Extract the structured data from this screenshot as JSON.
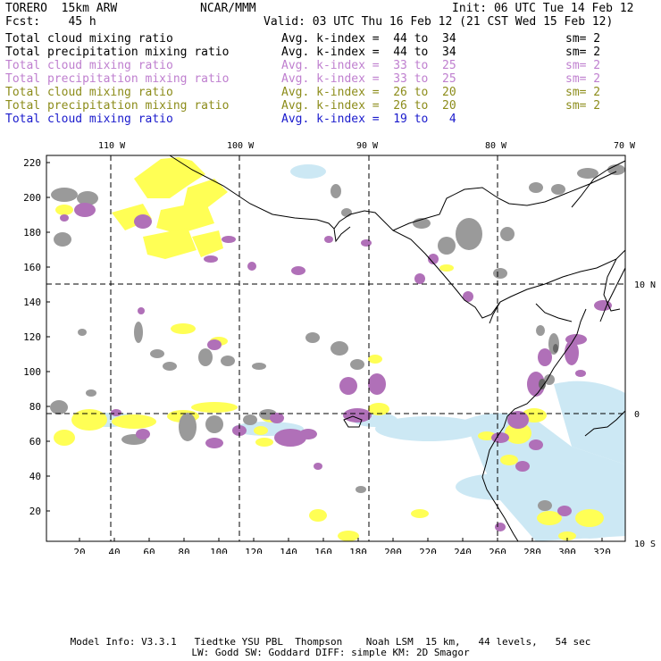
{
  "header": {
    "model": "TORERO  15km ARW",
    "center": "NCAR/MMM",
    "init": "Init: 06 UTC Tue 14 Feb 12",
    "fcst": "Fcst:    45 h",
    "valid": "Valid: 03 UTC Thu 16 Feb 12 (21 CST Wed 15 Feb 12)"
  },
  "legend": [
    {
      "name": "Total cloud mixing ratio",
      "index": "Avg. k-index =  44 to  34",
      "sm": "sm= 2",
      "color": "#000000"
    },
    {
      "name": "Total precipitation mixing ratio",
      "index": "Avg. k-index =  44 to  34",
      "sm": "sm= 2",
      "color": "#000000"
    },
    {
      "name": "Total cloud mixing ratio",
      "index": "Avg. k-index =  33 to  25",
      "sm": "sm= 2",
      "color": "#bf7fcf"
    },
    {
      "name": "Total precipitation mixing ratio",
      "index": "Avg. k-index =  33 to  25",
      "sm": "sm= 2",
      "color": "#bf7fcf"
    },
    {
      "name": "Total cloud mixing ratio",
      "index": "Avg. k-index =  26 to  20",
      "sm": "sm= 2",
      "color": "#8c8c1a"
    },
    {
      "name": "Total precipitation mixing ratio",
      "index": "Avg. k-index =  26 to  20",
      "sm": "sm= 2",
      "color": "#8c8c1a"
    },
    {
      "name": "Total cloud mixing ratio",
      "index": "Avg. k-index =  19 to   4",
      "sm": "",
      "color": "#1a1acc"
    }
  ],
  "map": {
    "longitude_labels": [
      "110 W",
      "100 W",
      "90 W",
      "80 W",
      "70 W"
    ],
    "latitude_labels": [
      "10 N",
      "0",
      "10 S"
    ],
    "y_ticks": [
      "220",
      "200",
      "180",
      "160",
      "140",
      "120",
      "100",
      "80",
      "60",
      "40",
      "20"
    ],
    "x_ticks": [
      "20",
      "40",
      "60",
      "80",
      "100",
      "120",
      "140",
      "160",
      "180",
      "200",
      "220",
      "240",
      "260",
      "280",
      "300",
      "320"
    ],
    "colors": {
      "gray": "#9a9a9a",
      "purple": "#b070b8",
      "yellow": "#ffff55",
      "lightblue": "#cce8f4",
      "coast": "#000000"
    }
  },
  "footer": {
    "line1": "Model Info: V3.3.1   Tiedtke YSU PBL  Thompson    Noah LSM  15 km,   44 levels,   54 sec",
    "line2": "LW: Godd SW: Goddard DIFF: simple KM: 2D Smagor"
  }
}
